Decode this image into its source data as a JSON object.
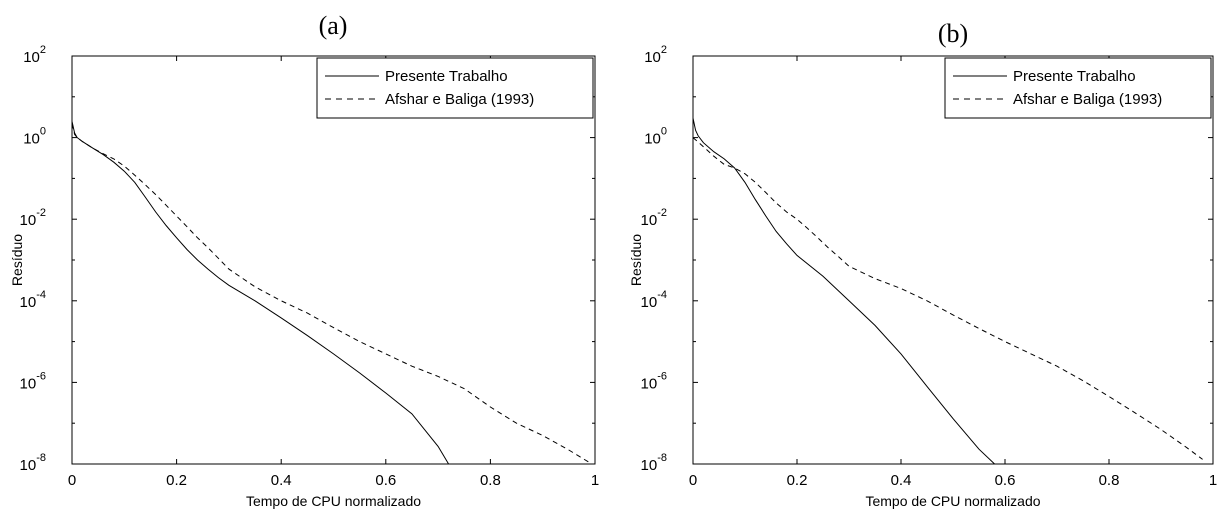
{
  "chart_data": [
    {
      "type": "line",
      "panel_label": "(a)",
      "xlabel": "Tempo de CPU normalizado",
      "ylabel": "Resíduo",
      "yscale": "log",
      "xlim": [
        0,
        1
      ],
      "ylim": [
        1e-08,
        100
      ],
      "x_ticks": [
        "0",
        "0.2",
        "0.4",
        "0.6",
        "0.8",
        "1"
      ],
      "y_tick_exponents": [
        "-8",
        "-6",
        "-4",
        "-2",
        "0",
        "2"
      ],
      "y_tick_base": "10",
      "legend_position": "top-right",
      "series": [
        {
          "name": "Presente Trabalho",
          "style": "solid",
          "x": [
            0.0,
            0.005,
            0.01,
            0.02,
            0.04,
            0.06,
            0.08,
            0.1,
            0.12,
            0.14,
            0.16,
            0.18,
            0.2,
            0.22,
            0.24,
            0.26,
            0.28,
            0.3,
            0.35,
            0.4,
            0.45,
            0.5,
            0.55,
            0.6,
            0.65,
            0.7,
            0.72
          ],
          "y": [
            2.5,
            1.3,
            1.0,
            0.8,
            0.55,
            0.38,
            0.25,
            0.15,
            0.08,
            0.035,
            0.015,
            0.007,
            0.0035,
            0.0018,
            0.001,
            0.0006,
            0.00037,
            0.00024,
            0.0001,
            3.8e-05,
            1.4e-05,
            5e-06,
            1.7e-06,
            5.5e-07,
            1.7e-07,
            2.7e-08,
            1e-08
          ]
        },
        {
          "name": "Afshar e Baliga (1993)",
          "style": "dashed",
          "x": [
            0.0,
            0.005,
            0.01,
            0.02,
            0.04,
            0.06,
            0.08,
            0.1,
            0.12,
            0.14,
            0.16,
            0.18,
            0.2,
            0.22,
            0.24,
            0.26,
            0.28,
            0.3,
            0.35,
            0.4,
            0.45,
            0.5,
            0.55,
            0.6,
            0.65,
            0.7,
            0.75,
            0.8,
            0.85,
            0.9,
            0.95,
            1.0
          ],
          "y": [
            2.2,
            1.2,
            1.0,
            0.8,
            0.55,
            0.4,
            0.3,
            0.2,
            0.12,
            0.07,
            0.04,
            0.022,
            0.012,
            0.0065,
            0.0035,
            0.002,
            0.0011,
            0.0006,
            0.00022,
            0.0001,
            5e-05,
            2.2e-05,
            1e-05,
            5e-06,
            2.5e-06,
            1.4e-06,
            7e-07,
            2.5e-07,
            1e-07,
            5e-08,
            2.2e-08,
            9e-09
          ]
        }
      ]
    },
    {
      "type": "line",
      "panel_label": "(b)",
      "xlabel": "Tempo de CPU normalizado",
      "ylabel": "Resíduo",
      "yscale": "log",
      "xlim": [
        0,
        1
      ],
      "ylim": [
        1e-08,
        100
      ],
      "x_ticks": [
        "0",
        "0.2",
        "0.4",
        "0.6",
        "0.8",
        "1"
      ],
      "y_tick_exponents": [
        "-8",
        "-6",
        "-4",
        "-2",
        "0",
        "2"
      ],
      "y_tick_base": "10",
      "legend_position": "top-right",
      "series": [
        {
          "name": "Presente Trabalho",
          "style": "solid",
          "x": [
            0.0,
            0.005,
            0.01,
            0.02,
            0.04,
            0.06,
            0.08,
            0.1,
            0.12,
            0.14,
            0.16,
            0.18,
            0.2,
            0.25,
            0.3,
            0.35,
            0.4,
            0.45,
            0.5,
            0.55,
            0.58
          ],
          "y": [
            3.0,
            1.5,
            1.1,
            0.75,
            0.45,
            0.3,
            0.18,
            0.08,
            0.03,
            0.012,
            0.005,
            0.0025,
            0.0013,
            0.0004,
            0.0001,
            2.5e-05,
            5e-06,
            8e-07,
            1.3e-07,
            2.3e-08,
            1e-08
          ]
        },
        {
          "name": "Afshar e Baliga (1993)",
          "style": "dashed",
          "x": [
            0.0,
            0.02,
            0.04,
            0.06,
            0.08,
            0.1,
            0.12,
            0.14,
            0.16,
            0.18,
            0.2,
            0.22,
            0.24,
            0.26,
            0.28,
            0.3,
            0.35,
            0.4,
            0.45,
            0.5,
            0.55,
            0.6,
            0.65,
            0.7,
            0.75,
            0.8,
            0.85,
            0.9,
            0.95,
            0.98
          ],
          "y": [
            1.0,
            0.6,
            0.35,
            0.22,
            0.18,
            0.13,
            0.08,
            0.045,
            0.025,
            0.015,
            0.01,
            0.006,
            0.0035,
            0.002,
            0.0012,
            0.0007,
            0.00035,
            0.0002,
            0.0001,
            4.5e-05,
            2.1e-05,
            1e-05,
            5e-06,
            2.5e-06,
            1.1e-06,
            4.5e-07,
            1.8e-07,
            7e-08,
            2.5e-08,
            1.3e-08
          ]
        }
      ]
    }
  ]
}
